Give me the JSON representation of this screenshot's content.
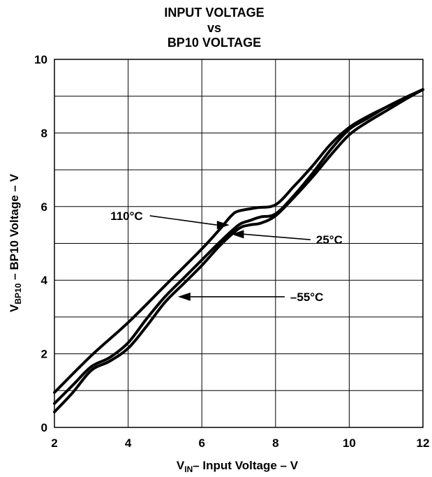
{
  "chart_data": {
    "type": "line",
    "title_lines": [
      "INPUT VOLTAGE",
      "vs",
      "BP10 VOLTAGE"
    ],
    "xlabel": {
      "main": "V",
      "sub": "IN",
      "rest": "– Input Voltage – V"
    },
    "ylabel": {
      "main": "V",
      "sub": "BP10",
      "rest": " – BP10 Voltage – V"
    },
    "xlim": [
      2,
      12
    ],
    "ylim": [
      0,
      10
    ],
    "x_ticks": [
      2,
      4,
      6,
      8,
      10,
      12
    ],
    "y_ticks": [
      0,
      2,
      4,
      6,
      8,
      10
    ],
    "x_grid_step": 2,
    "y_grid_step": 1,
    "grid": true,
    "series": [
      {
        "name": "110°C",
        "points": [
          [
            2,
            0.95
          ],
          [
            3,
            1.95
          ],
          [
            4,
            2.85
          ],
          [
            5,
            3.85
          ],
          [
            6,
            4.85
          ],
          [
            6.5,
            5.4
          ],
          [
            6.8,
            5.75
          ],
          [
            7,
            5.88
          ],
          [
            7.5,
            5.97
          ],
          [
            8,
            6.05
          ],
          [
            8.5,
            6.55
          ],
          [
            9,
            7.1
          ],
          [
            9.5,
            7.7
          ],
          [
            10,
            8.15
          ],
          [
            10.5,
            8.45
          ],
          [
            11,
            8.7
          ],
          [
            11.5,
            8.95
          ],
          [
            12,
            9.18
          ]
        ]
      },
      {
        "name": "25°C",
        "points": [
          [
            2,
            0.65
          ],
          [
            2.5,
            1.15
          ],
          [
            3,
            1.65
          ],
          [
            3.5,
            1.9
          ],
          [
            4,
            2.3
          ],
          [
            4.5,
            2.95
          ],
          [
            5,
            3.55
          ],
          [
            5.5,
            4.05
          ],
          [
            6,
            4.55
          ],
          [
            6.5,
            5.05
          ],
          [
            7,
            5.5
          ],
          [
            7.3,
            5.62
          ],
          [
            7.6,
            5.72
          ],
          [
            8,
            5.8
          ],
          [
            8.5,
            6.3
          ],
          [
            9,
            6.9
          ],
          [
            9.5,
            7.55
          ],
          [
            10,
            8.1
          ],
          [
            10.5,
            8.4
          ],
          [
            11,
            8.7
          ],
          [
            11.5,
            8.95
          ],
          [
            12,
            9.18
          ]
        ]
      },
      {
        "name": "–55°C",
        "points": [
          [
            2,
            0.42
          ],
          [
            2.5,
            0.95
          ],
          [
            3,
            1.55
          ],
          [
            3.5,
            1.8
          ],
          [
            4,
            2.15
          ],
          [
            4.5,
            2.75
          ],
          [
            5,
            3.4
          ],
          [
            5.5,
            3.9
          ],
          [
            6,
            4.4
          ],
          [
            6.5,
            4.95
          ],
          [
            7,
            5.4
          ],
          [
            7.3,
            5.5
          ],
          [
            7.6,
            5.55
          ],
          [
            8,
            5.75
          ],
          [
            8.5,
            6.25
          ],
          [
            9,
            6.8
          ],
          [
            9.5,
            7.4
          ],
          [
            10,
            7.95
          ],
          [
            10.5,
            8.3
          ],
          [
            11,
            8.6
          ],
          [
            11.5,
            8.9
          ],
          [
            12,
            9.18
          ]
        ]
      }
    ],
    "annotations": [
      {
        "label": "110°C",
        "label_xy": [
          4.4,
          5.75
        ],
        "tip_xy": [
          6.75,
          5.5
        ]
      },
      {
        "label": "25°C",
        "label_xy": [
          9.1,
          5.1
        ],
        "tip_xy": [
          6.8,
          5.25
        ]
      },
      {
        "label": "–55°C",
        "label_xy": [
          8.4,
          3.55
        ],
        "tip_xy": [
          5.35,
          3.55
        ]
      }
    ]
  }
}
